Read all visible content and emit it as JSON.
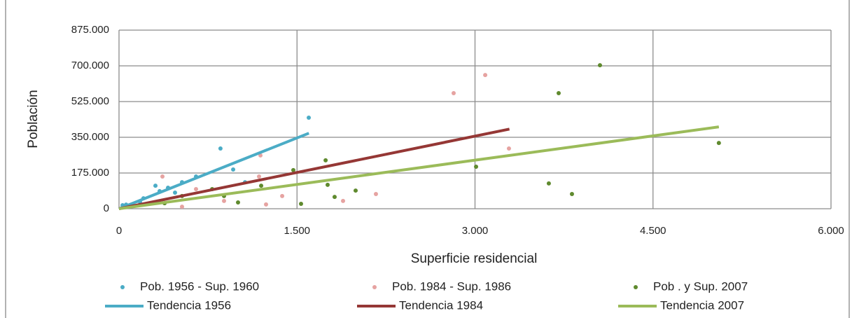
{
  "chart_data": {
    "type": "scatter",
    "xlabel": "Superficie residencial",
    "ylabel": "Población",
    "xlim": [
      0,
      6000
    ],
    "ylim": [
      0,
      875000
    ],
    "xticks": [
      0,
      {
        "value": 1500,
        "label": "1.500"
      },
      {
        "value": 3000,
        "label": "3.000"
      },
      {
        "value": 4500,
        "label": "4.500"
      },
      {
        "value": 6000,
        "label": "6.000"
      }
    ],
    "yticks": [
      0,
      {
        "value": 175000,
        "label": "175.000"
      },
      {
        "value": 350000,
        "label": "350.000"
      },
      {
        "value": 525000,
        "label": "525.000"
      },
      {
        "value": 700000,
        "label": "700.000"
      },
      {
        "value": 875000,
        "label": "875.000"
      }
    ],
    "grid": true,
    "legend": "bottom",
    "series": [
      {
        "name": "Pob. 1956 - Sup. 1960",
        "kind": "points",
        "color": "#4bacc6",
        "x": [
          30,
          60,
          177,
          206,
          307,
          342,
          413,
          472,
          531,
          649,
          855,
          962,
          1062,
          1599
        ],
        "values": [
          17000,
          20000,
          34000,
          51000,
          113000,
          86000,
          103000,
          79000,
          130000,
          158000,
          295000,
          192000,
          130000,
          446000
        ]
      },
      {
        "name": "Pob. 1984 - Sup. 1986",
        "kind": "points",
        "color": "#e6a3a1",
        "x": [
          366,
          1180,
          1192,
          2820,
          3086,
          3286,
          2165,
          1888,
          1375,
          885,
          649,
          1239,
          531
        ],
        "values": [
          158000,
          158000,
          261000,
          566000,
          655000,
          295000,
          72000,
          38000,
          62000,
          38000,
          96000,
          21000,
          10000
        ]
      },
      {
        "name": "Pob . y Sup. 2007",
        "kind": "points",
        "color": "#5f8a2e",
        "x": [
          4053,
          3705,
          3622,
          3817,
          5055,
          3009,
          1741,
          1758,
          1469,
          1534,
          1994,
          1817,
          1198,
          885,
          785,
          384,
          531,
          1003
        ],
        "values": [
          703000,
          566000,
          124000,
          72000,
          322000,
          206000,
          237000,
          117000,
          189000,
          24000,
          89000,
          58000,
          113000,
          62000,
          96000,
          27000,
          62000,
          31000
        ]
      },
      {
        "name": "Tendencia 1956",
        "kind": "line",
        "color": "#4bacc6",
        "x": [
          0,
          1600
        ],
        "values": [
          0,
          370000
        ]
      },
      {
        "name": "Tendencia 1984",
        "kind": "line",
        "color": "#953735",
        "x": [
          0,
          3290
        ],
        "values": [
          0,
          390000
        ]
      },
      {
        "name": "Tendencia 2007",
        "kind": "line",
        "color": "#9bbb59",
        "x": [
          0,
          5055
        ],
        "values": [
          0,
          401000
        ]
      }
    ]
  }
}
